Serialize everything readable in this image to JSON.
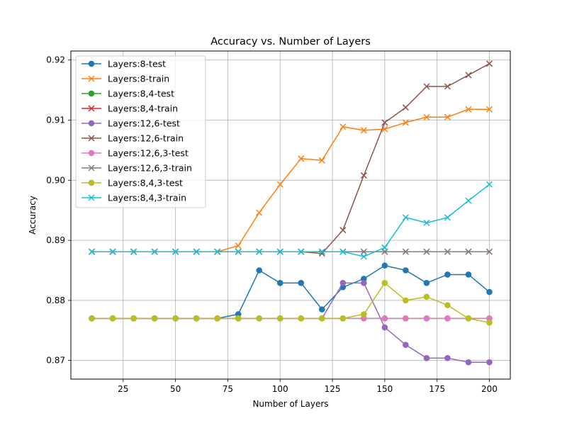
{
  "chart_data": {
    "type": "line",
    "title": "Accuracy vs. Number of Layers",
    "xlabel": "Number of Layers",
    "ylabel": "Accuracy",
    "xlim": [
      0,
      210
    ],
    "ylim": [
      0.8669,
      0.9215
    ],
    "xticks": [
      25,
      50,
      75,
      100,
      125,
      150,
      175,
      200
    ],
    "yticks": [
      0.87,
      0.88,
      0.89,
      0.9,
      0.91,
      0.92
    ],
    "ytick_labels": [
      "0.87",
      "0.88",
      "0.89",
      "0.90",
      "0.91",
      "0.92"
    ],
    "grid": true,
    "legend_position": "top-left",
    "x": [
      10,
      20,
      30,
      40,
      50,
      60,
      70,
      80,
      90,
      100,
      110,
      120,
      130,
      140,
      150,
      160,
      170,
      180,
      190,
      200
    ],
    "series": [
      {
        "name": "Layers:8-test",
        "color": "#1f77b4",
        "marker": "circle",
        "values": [
          0.877,
          0.877,
          0.877,
          0.877,
          0.877,
          0.877,
          0.877,
          0.8777,
          0.885,
          0.8829,
          0.8829,
          0.8785,
          0.8822,
          0.8836,
          0.8858,
          0.885,
          0.8829,
          0.8843,
          0.8843,
          0.8814
        ]
      },
      {
        "name": "Layers:8-train",
        "color": "#ff7f0e",
        "marker": "x",
        "values": [
          0.8881,
          0.8881,
          0.8881,
          0.8881,
          0.8881,
          0.8881,
          0.8881,
          0.8891,
          0.8946,
          0.8993,
          0.9036,
          0.9033,
          0.9089,
          0.9083,
          0.9085,
          0.9096,
          0.9105,
          0.9105,
          0.9118,
          0.9118
        ]
      },
      {
        "name": "Layers:8,4-test",
        "color": "#2ca02c",
        "marker": "circle",
        "values": [
          0.877,
          0.877,
          0.877,
          0.877,
          0.877,
          0.877,
          0.877,
          0.877,
          0.877,
          0.877,
          0.877,
          0.877,
          0.877,
          0.877,
          0.877,
          0.877,
          0.877,
          0.877,
          0.877,
          0.877
        ]
      },
      {
        "name": "Layers:8,4-train",
        "color": "#d62728",
        "marker": "x",
        "values": [
          0.8881,
          0.8881,
          0.8881,
          0.8881,
          0.8881,
          0.8881,
          0.8881,
          0.8881,
          0.8881,
          0.8881,
          0.8881,
          0.8881,
          0.8881,
          0.8881,
          0.8881,
          0.8881,
          0.8881,
          0.8881,
          0.8881,
          0.8881
        ]
      },
      {
        "name": "Layers:12,6-test",
        "color": "#9467bd",
        "marker": "circle",
        "values": [
          0.877,
          0.877,
          0.877,
          0.877,
          0.877,
          0.877,
          0.877,
          0.877,
          0.877,
          0.877,
          0.877,
          0.877,
          0.8829,
          0.8829,
          0.8755,
          0.8726,
          0.8704,
          0.8704,
          0.8697,
          0.8697
        ]
      },
      {
        "name": "Layers:12,6-train",
        "color": "#8c564b",
        "marker": "x",
        "values": [
          0.8881,
          0.8881,
          0.8881,
          0.8881,
          0.8881,
          0.8881,
          0.8881,
          0.8881,
          0.8881,
          0.8881,
          0.8881,
          0.8878,
          0.8917,
          0.9008,
          0.9096,
          0.9121,
          0.9156,
          0.9156,
          0.9175,
          0.9194
        ]
      },
      {
        "name": "Layers:12,6,3-test",
        "color": "#e377c2",
        "marker": "circle",
        "values": [
          0.877,
          0.877,
          0.877,
          0.877,
          0.877,
          0.877,
          0.877,
          0.877,
          0.877,
          0.877,
          0.877,
          0.877,
          0.877,
          0.877,
          0.877,
          0.877,
          0.877,
          0.877,
          0.877,
          0.877
        ]
      },
      {
        "name": "Layers:12,6,3-train",
        "color": "#7f7f7f",
        "marker": "x",
        "values": [
          0.8881,
          0.8881,
          0.8881,
          0.8881,
          0.8881,
          0.8881,
          0.8881,
          0.8881,
          0.8881,
          0.8881,
          0.8881,
          0.8881,
          0.8881,
          0.8881,
          0.8881,
          0.8881,
          0.8881,
          0.8881,
          0.8881,
          0.8881
        ]
      },
      {
        "name": "Layers:8,4,3-test",
        "color": "#bcbd22",
        "marker": "circle",
        "values": [
          0.877,
          0.877,
          0.877,
          0.877,
          0.877,
          0.877,
          0.877,
          0.877,
          0.877,
          0.877,
          0.877,
          0.877,
          0.877,
          0.8777,
          0.8829,
          0.88,
          0.8806,
          0.8792,
          0.877,
          0.8763
        ]
      },
      {
        "name": "Layers:8,4,3-train",
        "color": "#17becf",
        "marker": "x",
        "values": [
          0.8881,
          0.8881,
          0.8881,
          0.8881,
          0.8881,
          0.8881,
          0.8881,
          0.8881,
          0.8881,
          0.8881,
          0.8881,
          0.8881,
          0.8881,
          0.8873,
          0.8888,
          0.8938,
          0.8929,
          0.8938,
          0.8966,
          0.8993
        ]
      }
    ]
  }
}
